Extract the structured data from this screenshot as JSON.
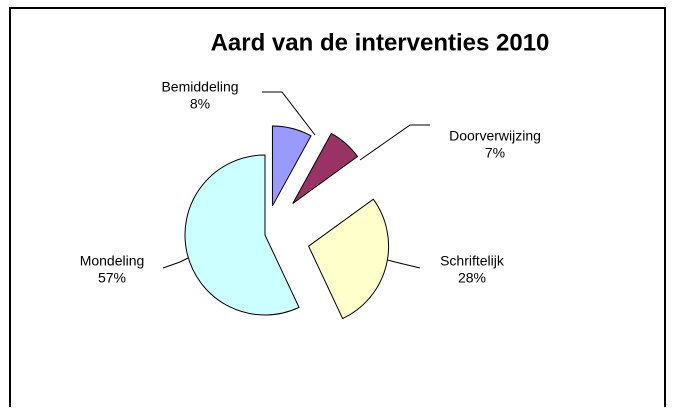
{
  "chart_data": {
    "type": "pie",
    "title": "Aard van de interventies 2010",
    "categories": [
      "Bemiddeling",
      "Doorverwijzing",
      "Schriftelijk",
      "Mondeling"
    ],
    "values": [
      8,
      7,
      28,
      57
    ],
    "value_labels": [
      "8%",
      "7%",
      "28%",
      "57%"
    ],
    "colors": [
      "#9999ff",
      "#993366",
      "#ffffcc",
      "#ccffff"
    ]
  }
}
